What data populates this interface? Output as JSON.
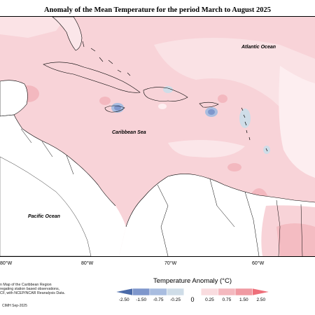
{
  "title": "Anomaly of the Mean Temperature for the period March to August 2025",
  "ocean_labels": {
    "atlantic": "Atlantic Ocean",
    "caribbean": "Caribbean Sea",
    "pacific": "Pacific Ocean"
  },
  "longitude_labels": [
    "80°W",
    "80°W",
    "70°W",
    "60°W"
  ],
  "legend": {
    "title": "Temperature Anomaly (°C)",
    "ticks": [
      "-2.50",
      "-1.50",
      "-0.75",
      "-0.25",
      "0",
      "0.25",
      "0.75",
      "1.50",
      "2.50"
    ],
    "colors": [
      "#4a6aa8",
      "#7f97cc",
      "#a9bde0",
      "#cfdde8",
      "#ffffff",
      "#f9dcdf",
      "#f4b9bf",
      "#f09aa2",
      "#ee6f7a"
    ]
  },
  "note": [
    "n Map of the Caribbean Region",
    "regating station based observations,",
    "CF, with NCEP/NCAR Reanalysis Data."
  ],
  "credit": "CIMH Sep-2025"
}
